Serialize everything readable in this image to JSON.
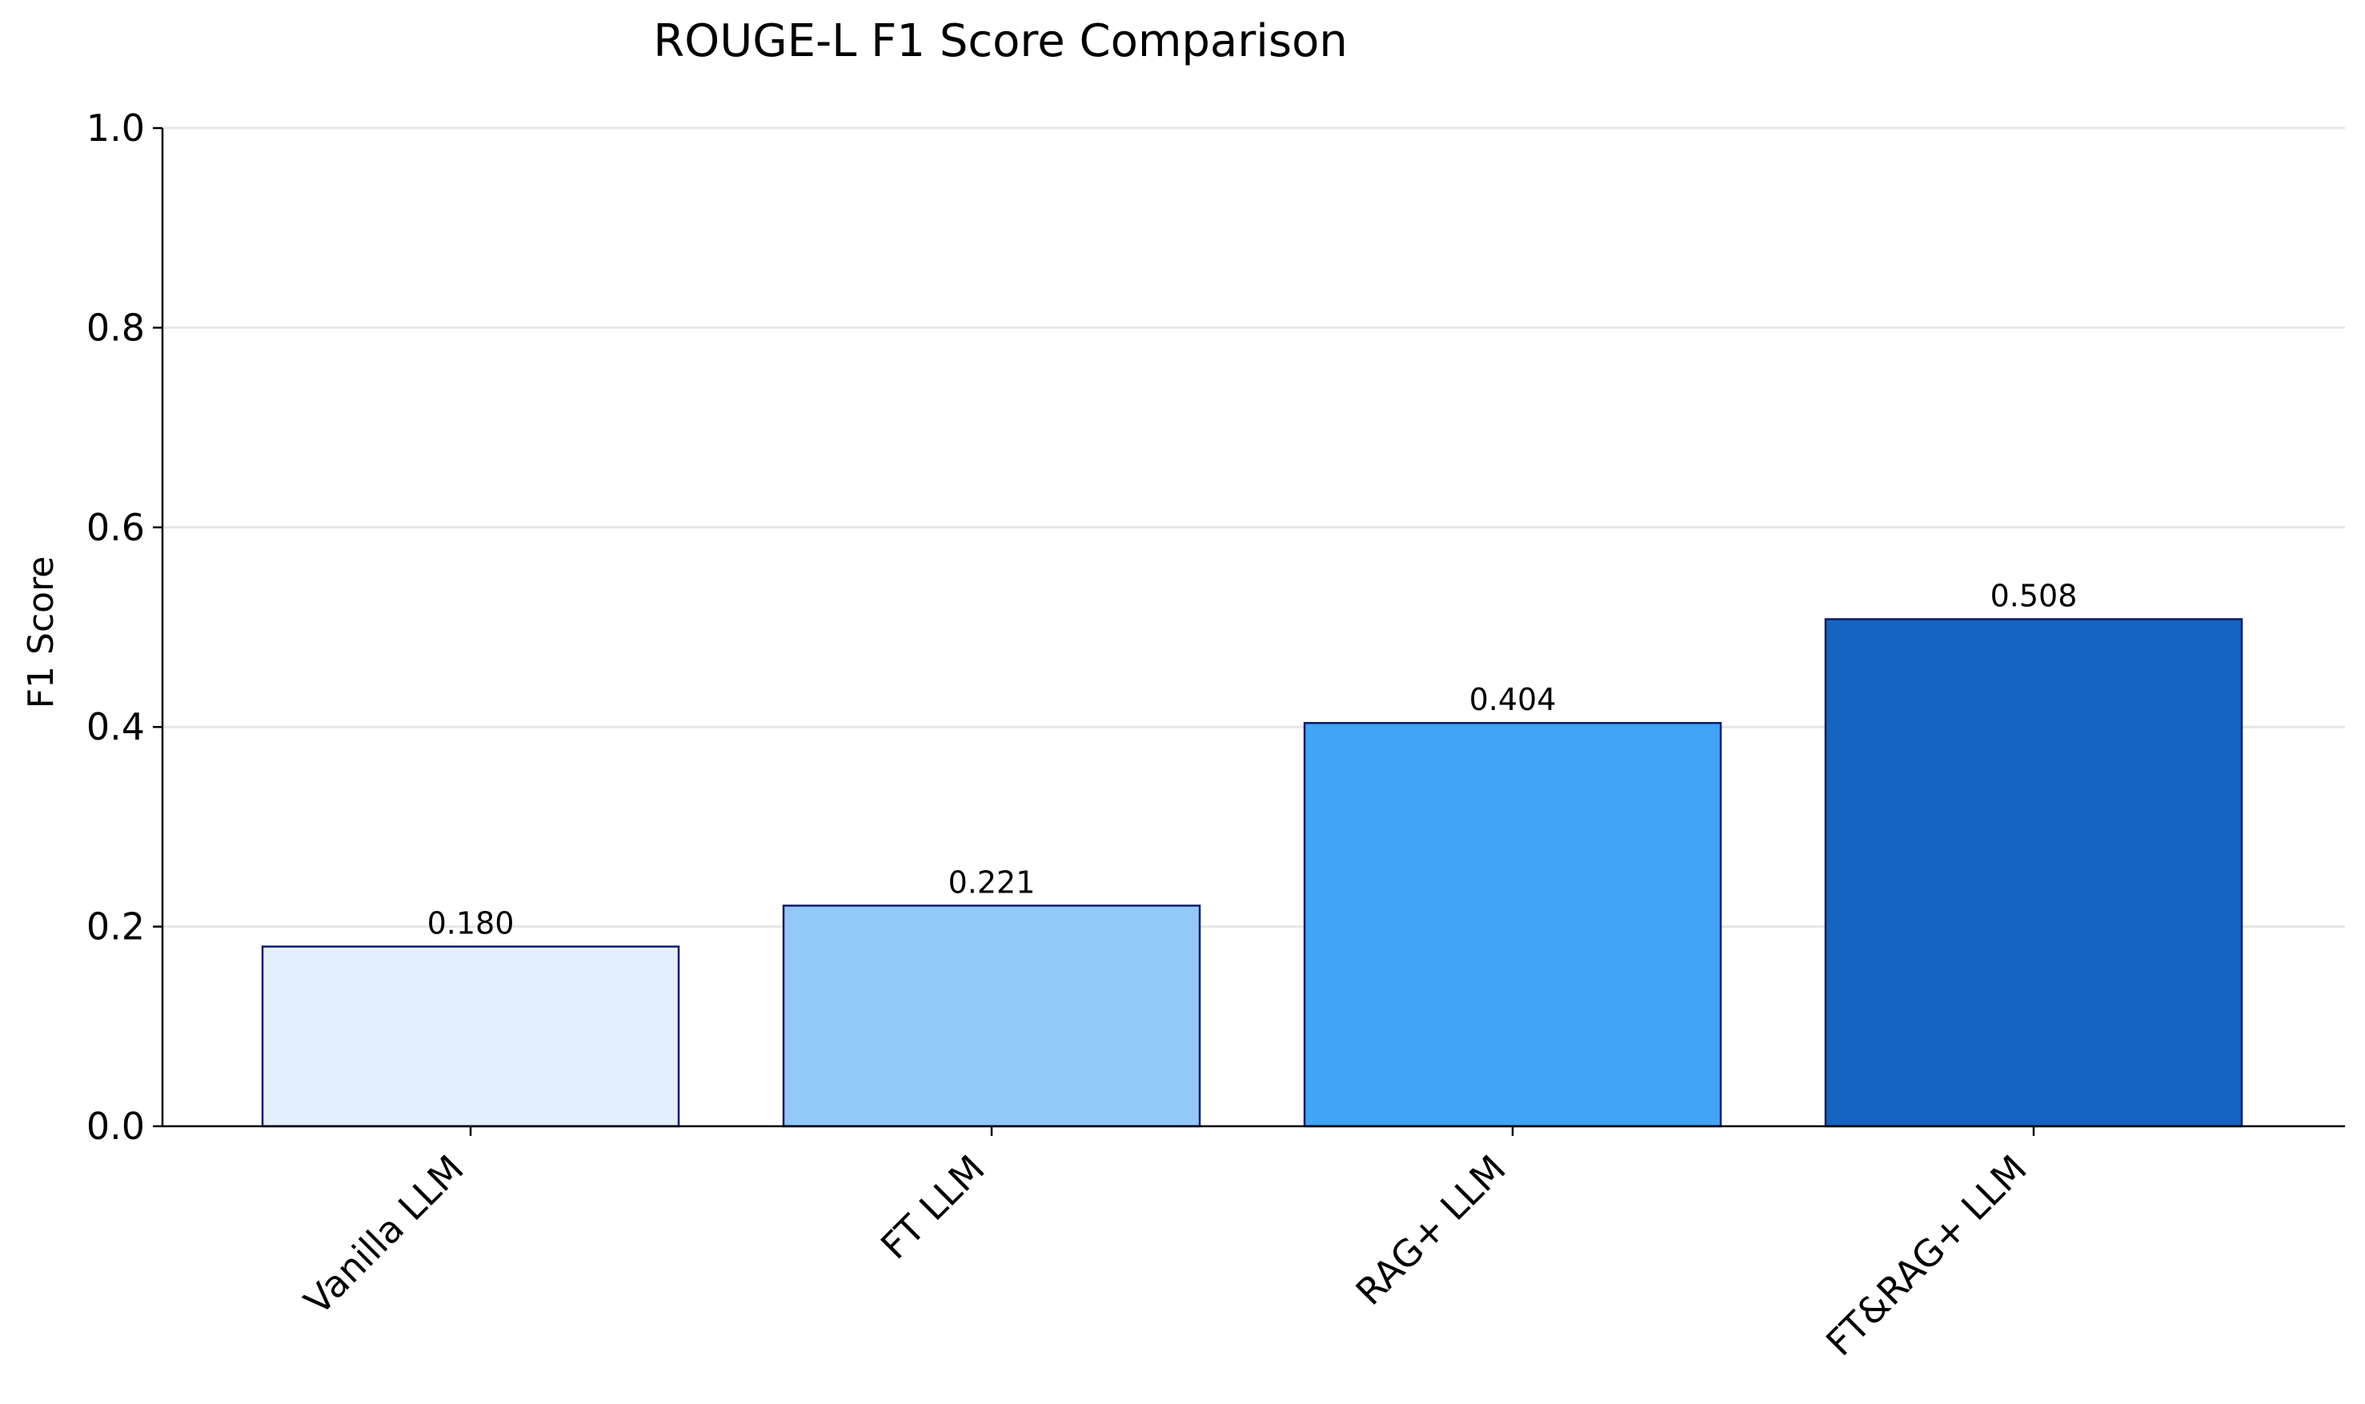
{
  "chart_data": {
    "type": "bar",
    "title": "ROUGE-L F1 Score Comparison",
    "xlabel": "",
    "ylabel": "F1 Score",
    "ylim": [
      0.0,
      1.0
    ],
    "yticks": [
      0.0,
      0.2,
      0.4,
      0.6,
      0.8,
      1.0
    ],
    "ytick_labels": [
      "0.0",
      "0.2",
      "0.4",
      "0.6",
      "0.8",
      "1.0"
    ],
    "grid": true,
    "categories": [
      "Vanilla LLM",
      "FT LLM",
      "RAG+ LLM",
      "FT&RAG+ LLM"
    ],
    "values": [
      0.18,
      0.221,
      0.404,
      0.508
    ],
    "value_labels": [
      "0.180",
      "0.221",
      "0.404",
      "0.508"
    ],
    "bar_colors": [
      "#e3f0fc",
      "#92c8f7",
      "#42a4f5",
      "#1565c0"
    ],
    "bar_edge_color": "#0d1b6b"
  }
}
